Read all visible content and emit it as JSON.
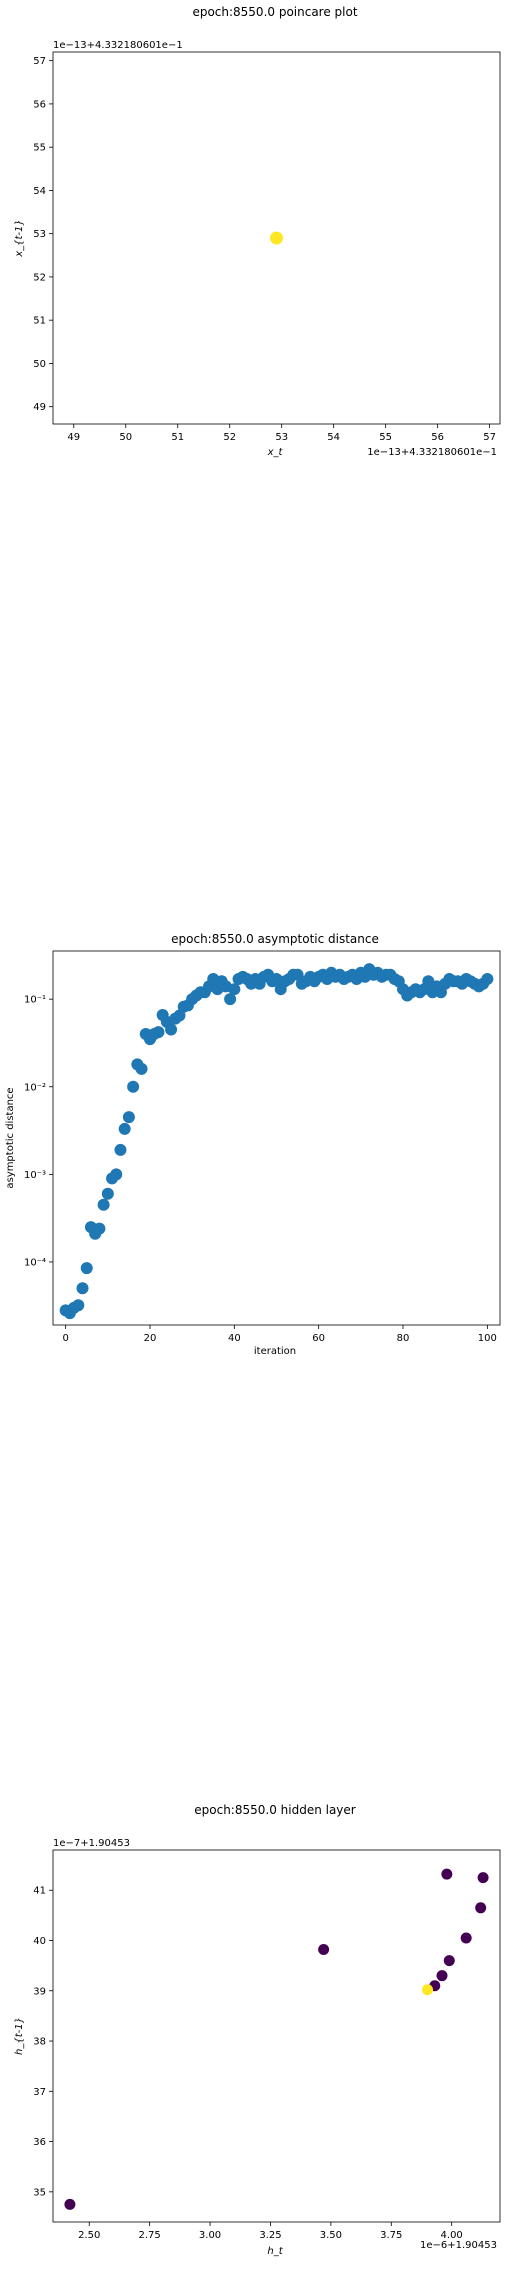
{
  "chart_data": [
    {
      "type": "scatter",
      "title": "epoch:8550.0 poincare plot",
      "xlabel": "x_t",
      "ylabel": "x_{t-1}",
      "x_offset_label": "1e−13+4.332180601e−1",
      "y_offset_label": "1e−13+4.332180601e−1",
      "xlim": [
        48.6,
        57.2
      ],
      "ylim": [
        48.6,
        57.2
      ],
      "xticks": [
        "49",
        "50",
        "51",
        "52",
        "53",
        "54",
        "55",
        "56",
        "57"
      ],
      "yticks": [
        "49",
        "50",
        "51",
        "52",
        "53",
        "54",
        "55",
        "56",
        "57"
      ],
      "points": [
        {
          "x": 52.9,
          "y": 52.9,
          "color": "#fde725"
        }
      ]
    },
    {
      "type": "scatter",
      "title": "epoch:8550.0 asymptotic distance",
      "xlabel": "iteration",
      "ylabel": "asymptotic distance",
      "yscale": "log",
      "xlim": [
        -3,
        103
      ],
      "xticks": [
        "0",
        "20",
        "40",
        "60",
        "80",
        "100"
      ],
      "yticks": [
        "10⁻⁴",
        "10⁻³",
        "10⁻²",
        "10⁻¹"
      ],
      "color": "#1f77b4",
      "x": [
        0,
        1,
        2,
        3,
        4,
        5,
        6,
        7,
        8,
        9,
        10,
        11,
        12,
        13,
        14,
        15,
        16,
        17,
        18,
        19,
        20,
        21,
        22,
        23,
        24,
        25,
        26,
        27,
        28,
        29,
        30,
        31,
        32,
        33,
        34,
        35,
        36,
        37,
        38,
        39,
        40,
        41,
        42,
        43,
        44,
        45,
        46,
        47,
        48,
        49,
        50,
        51,
        52,
        53,
        54,
        55,
        56,
        57,
        58,
        59,
        60,
        61,
        62,
        63,
        64,
        65,
        66,
        67,
        68,
        69,
        70,
        71,
        72,
        73,
        74,
        75,
        76,
        77,
        78,
        79,
        80,
        81,
        82,
        83,
        84,
        85,
        86,
        87,
        88,
        89,
        90,
        91,
        92,
        93,
        94,
        95,
        96,
        97,
        98,
        99,
        100
      ],
      "y": [
        2.8e-05,
        2.6e-05,
        3e-05,
        3.2e-05,
        5e-05,
        8.5e-05,
        0.00025,
        0.00021,
        0.00024,
        0.00045,
        0.0006,
        0.0009,
        0.001,
        0.0019,
        0.0033,
        0.0045,
        0.01,
        0.018,
        0.016,
        0.04,
        0.035,
        0.04,
        0.042,
        0.066,
        0.055,
        0.045,
        0.06,
        0.065,
        0.082,
        0.085,
        0.1,
        0.11,
        0.12,
        0.12,
        0.14,
        0.17,
        0.13,
        0.16,
        0.14,
        0.1,
        0.13,
        0.17,
        0.18,
        0.17,
        0.15,
        0.17,
        0.15,
        0.18,
        0.19,
        0.16,
        0.17,
        0.13,
        0.16,
        0.17,
        0.19,
        0.19,
        0.15,
        0.16,
        0.18,
        0.16,
        0.18,
        0.19,
        0.17,
        0.2,
        0.18,
        0.19,
        0.17,
        0.18,
        0.19,
        0.17,
        0.2,
        0.18,
        0.22,
        0.19,
        0.2,
        0.18,
        0.19,
        0.19,
        0.17,
        0.16,
        0.13,
        0.11,
        0.12,
        0.13,
        0.12,
        0.13,
        0.16,
        0.12,
        0.14,
        0.12,
        0.15,
        0.17,
        0.16,
        0.16,
        0.15,
        0.17,
        0.16,
        0.15,
        0.14,
        0.15,
        0.17
      ]
    },
    {
      "type": "scatter",
      "title": "epoch:8550.0 hidden layer",
      "xlabel": "h_t",
      "ylabel": "h_{t-1}",
      "x_offset_label": "1e−6+1.90453",
      "y_offset_label": "1e−7+1.90453",
      "xlim": [
        2.35,
        4.2
      ],
      "ylim": [
        34.4,
        41.8
      ],
      "xticks": [
        "2.50",
        "2.75",
        "3.00",
        "3.25",
        "3.50",
        "3.75",
        "4.00"
      ],
      "yticks": [
        "35",
        "36",
        "37",
        "38",
        "39",
        "40",
        "41"
      ],
      "points": [
        {
          "x": 2.42,
          "y": 34.75,
          "color": "#440154"
        },
        {
          "x": 3.47,
          "y": 39.82,
          "color": "#440154"
        },
        {
          "x": 3.9,
          "y": 39.02,
          "color": "#fde725"
        },
        {
          "x": 3.93,
          "y": 39.1,
          "color": "#440154"
        },
        {
          "x": 3.96,
          "y": 39.3,
          "color": "#440154"
        },
        {
          "x": 3.99,
          "y": 39.6,
          "color": "#440154"
        },
        {
          "x": 3.98,
          "y": 41.32,
          "color": "#440154"
        },
        {
          "x": 4.06,
          "y": 40.05,
          "color": "#440154"
        },
        {
          "x": 4.12,
          "y": 40.65,
          "color": "#440154"
        },
        {
          "x": 4.13,
          "y": 41.25,
          "color": "#440154"
        }
      ]
    }
  ]
}
